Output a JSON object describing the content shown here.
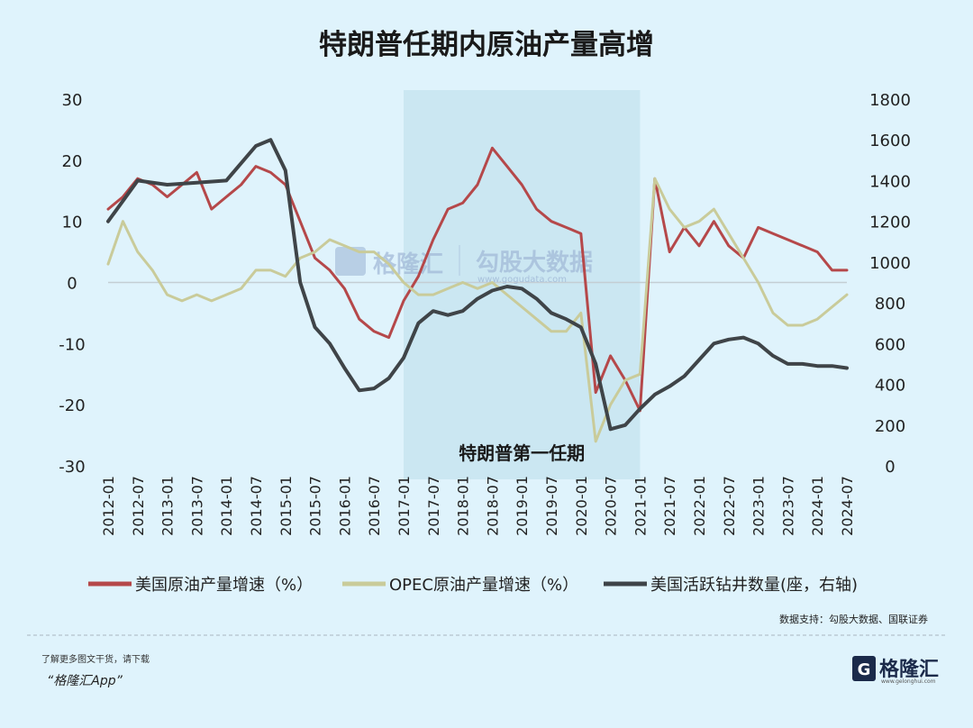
{
  "chart_data": {
    "type": "line",
    "title": "特朗普任期内原油产量高增",
    "left_axis": {
      "ticks": [
        "30",
        "20",
        "10",
        "0",
        "-10",
        "-20",
        "-30"
      ],
      "range": [
        -30,
        30
      ]
    },
    "right_axis": {
      "ticks": [
        "1800",
        "1600",
        "1400",
        "1200",
        "1000",
        "800",
        "600",
        "400",
        "200",
        "0"
      ],
      "range": [
        0,
        1800
      ]
    },
    "x_ticks": [
      "2012-01",
      "2012-07",
      "2013-01",
      "2013-07",
      "2014-01",
      "2014-07",
      "2015-01",
      "2015-07",
      "2016-01",
      "2016-07",
      "2017-01",
      "2017-07",
      "2018-01",
      "2018-07",
      "2019-01",
      "2019-07",
      "2020-01",
      "2020-07",
      "2021-01",
      "2021-07",
      "2022-01",
      "2022-07",
      "2023-01",
      "2023-07",
      "2024-01",
      "2024-07"
    ],
    "shaded_region": {
      "label": "特朗普第一任期",
      "from": "2017-01",
      "to": "2021-01"
    },
    "series": [
      {
        "name": "美国原油产量增速（%）",
        "axis": "left",
        "color": "#b5484a",
        "points": [
          [
            "2012-01",
            12
          ],
          [
            "2012-04",
            14
          ],
          [
            "2012-07",
            17
          ],
          [
            "2012-10",
            16
          ],
          [
            "2013-01",
            14
          ],
          [
            "2013-04",
            16
          ],
          [
            "2013-07",
            18
          ],
          [
            "2013-10",
            12
          ],
          [
            "2014-01",
            14
          ],
          [
            "2014-04",
            16
          ],
          [
            "2014-07",
            19
          ],
          [
            "2014-10",
            18
          ],
          [
            "2015-01",
            16
          ],
          [
            "2015-04",
            10
          ],
          [
            "2015-07",
            4
          ],
          [
            "2015-10",
            2
          ],
          [
            "2016-01",
            -1
          ],
          [
            "2016-04",
            -6
          ],
          [
            "2016-07",
            -8
          ],
          [
            "2016-10",
            -9
          ],
          [
            "2017-01",
            -3
          ],
          [
            "2017-04",
            1
          ],
          [
            "2017-07",
            7
          ],
          [
            "2017-10",
            12
          ],
          [
            "2018-01",
            13
          ],
          [
            "2018-04",
            16
          ],
          [
            "2018-07",
            22
          ],
          [
            "2018-10",
            19
          ],
          [
            "2019-01",
            16
          ],
          [
            "2019-04",
            12
          ],
          [
            "2019-07",
            10
          ],
          [
            "2019-10",
            9
          ],
          [
            "2020-01",
            8
          ],
          [
            "2020-04",
            -18
          ],
          [
            "2020-07",
            -12
          ],
          [
            "2020-10",
            -16
          ],
          [
            "2021-01",
            -21
          ],
          [
            "2021-04",
            17
          ],
          [
            "2021-07",
            5
          ],
          [
            "2021-10",
            9
          ],
          [
            "2022-01",
            6
          ],
          [
            "2022-04",
            10
          ],
          [
            "2022-07",
            6
          ],
          [
            "2022-10",
            4
          ],
          [
            "2023-01",
            9
          ],
          [
            "2023-04",
            8
          ],
          [
            "2023-07",
            7
          ],
          [
            "2023-10",
            6
          ],
          [
            "2024-01",
            5
          ],
          [
            "2024-04",
            2
          ],
          [
            "2024-07",
            2
          ]
        ]
      },
      {
        "name": "OPEC原油产量增速（%）",
        "axis": "left",
        "color": "#c9cb9a",
        "points": [
          [
            "2012-01",
            3
          ],
          [
            "2012-04",
            10
          ],
          [
            "2012-07",
            5
          ],
          [
            "2012-10",
            2
          ],
          [
            "2013-01",
            -2
          ],
          [
            "2013-04",
            -3
          ],
          [
            "2013-07",
            -2
          ],
          [
            "2013-10",
            -3
          ],
          [
            "2014-01",
            -2
          ],
          [
            "2014-04",
            -1
          ],
          [
            "2014-07",
            2
          ],
          [
            "2014-10",
            2
          ],
          [
            "2015-01",
            1
          ],
          [
            "2015-04",
            4
          ],
          [
            "2015-07",
            5
          ],
          [
            "2015-10",
            7
          ],
          [
            "2016-01",
            6
          ],
          [
            "2016-04",
            5
          ],
          [
            "2016-07",
            5
          ],
          [
            "2016-10",
            3
          ],
          [
            "2017-01",
            0
          ],
          [
            "2017-04",
            -2
          ],
          [
            "2017-07",
            -2
          ],
          [
            "2017-10",
            -1
          ],
          [
            "2018-01",
            0
          ],
          [
            "2018-04",
            -1
          ],
          [
            "2018-07",
            0
          ],
          [
            "2018-10",
            -2
          ],
          [
            "2019-01",
            -4
          ],
          [
            "2019-04",
            -6
          ],
          [
            "2019-07",
            -8
          ],
          [
            "2019-10",
            -8
          ],
          [
            "2020-01",
            -5
          ],
          [
            "2020-04",
            -26
          ],
          [
            "2020-07",
            -20
          ],
          [
            "2020-10",
            -16
          ],
          [
            "2021-01",
            -15
          ],
          [
            "2021-04",
            17
          ],
          [
            "2021-07",
            12
          ],
          [
            "2021-10",
            9
          ],
          [
            "2022-01",
            10
          ],
          [
            "2022-04",
            12
          ],
          [
            "2022-07",
            8
          ],
          [
            "2022-10",
            4
          ],
          [
            "2023-01",
            0
          ],
          [
            "2023-04",
            -5
          ],
          [
            "2023-07",
            -7
          ],
          [
            "2023-10",
            -7
          ],
          [
            "2024-01",
            -6
          ],
          [
            "2024-04",
            -4
          ],
          [
            "2024-07",
            -2
          ]
        ]
      },
      {
        "name": "美国活跃钻井数量(座，右轴)",
        "axis": "right",
        "color": "#3f4448",
        "points": [
          [
            "2012-01",
            1200
          ],
          [
            "2012-07",
            1400
          ],
          [
            "2013-01",
            1380
          ],
          [
            "2013-07",
            1390
          ],
          [
            "2014-01",
            1400
          ],
          [
            "2014-07",
            1570
          ],
          [
            "2014-10",
            1600
          ],
          [
            "2015-01",
            1450
          ],
          [
            "2015-04",
            900
          ],
          [
            "2015-07",
            680
          ],
          [
            "2015-10",
            600
          ],
          [
            "2016-01",
            480
          ],
          [
            "2016-04",
            370
          ],
          [
            "2016-07",
            380
          ],
          [
            "2016-10",
            430
          ],
          [
            "2017-01",
            530
          ],
          [
            "2017-04",
            700
          ],
          [
            "2017-07",
            760
          ],
          [
            "2017-10",
            740
          ],
          [
            "2018-01",
            760
          ],
          [
            "2018-04",
            820
          ],
          [
            "2018-07",
            860
          ],
          [
            "2018-10",
            880
          ],
          [
            "2019-01",
            870
          ],
          [
            "2019-04",
            820
          ],
          [
            "2019-07",
            750
          ],
          [
            "2019-10",
            720
          ],
          [
            "2020-01",
            680
          ],
          [
            "2020-04",
            500
          ],
          [
            "2020-07",
            180
          ],
          [
            "2020-10",
            200
          ],
          [
            "2021-01",
            280
          ],
          [
            "2021-04",
            350
          ],
          [
            "2021-07",
            390
          ],
          [
            "2021-10",
            440
          ],
          [
            "2022-01",
            520
          ],
          [
            "2022-04",
            600
          ],
          [
            "2022-07",
            620
          ],
          [
            "2022-10",
            630
          ],
          [
            "2023-01",
            600
          ],
          [
            "2023-04",
            540
          ],
          [
            "2023-07",
            500
          ],
          [
            "2023-10",
            500
          ],
          [
            "2024-01",
            490
          ],
          [
            "2024-04",
            490
          ],
          [
            "2024-07",
            480
          ]
        ]
      }
    ]
  },
  "watermark": {
    "brand": "格隆汇",
    "sub_brand": "勾股大数据",
    "url": "www.gogudata.com"
  },
  "source_note": "数据支持：勾股大数据、国联证券",
  "footer": {
    "line1": "了解更多图文干货，请下载",
    "line2": "“格隆汇App”",
    "logo_text": "格隆汇",
    "logo_url": "www.gelonghui.com"
  }
}
